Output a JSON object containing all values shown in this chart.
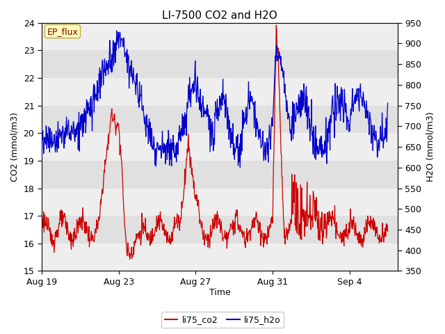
{
  "title": "LI-7500 CO2 and H2O",
  "xlabel": "Time",
  "ylabel_left": "CO2 (mmol/m3)",
  "ylabel_right": "H2O (mmol/m3)",
  "ylim_left": [
    15.0,
    24.0
  ],
  "ylim_right": [
    350,
    950
  ],
  "annotation_text": "EP_flux",
  "color_co2": "#cc0000",
  "color_h2o": "#0000cc",
  "background_color": "#ffffff",
  "stripe_light": "#eeeeee",
  "stripe_dark": "#e0e0e0",
  "legend_labels": [
    "li75_co2",
    "li75_h2o"
  ],
  "title_fontsize": 11,
  "label_fontsize": 9,
  "tick_fontsize": 9,
  "annotation_fontsize": 9
}
